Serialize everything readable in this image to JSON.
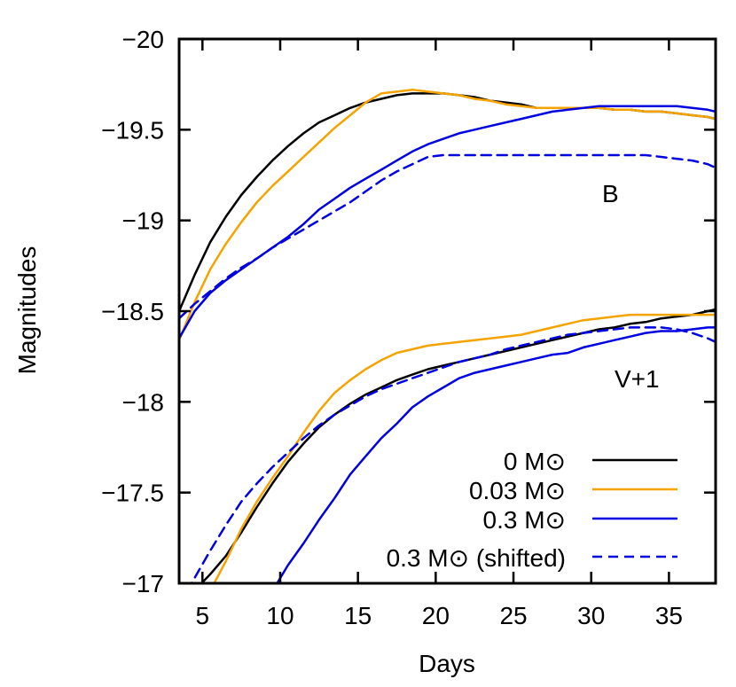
{
  "chart_data": {
    "type": "line",
    "xlabel": "Days",
    "ylabel": "Magnitudes",
    "xlim": [
      3.5,
      38
    ],
    "ylim": [
      -17,
      -20
    ],
    "y_axis_inverted": true,
    "grid": false,
    "legend_position": "bottom-right",
    "x_ticks": [
      5,
      10,
      15,
      20,
      25,
      30,
      35
    ],
    "y_ticks": [
      -20,
      -19.5,
      -19,
      -18.5,
      -18,
      -17.5,
      -17
    ],
    "x_tick_labels": [
      "5",
      "10",
      "15",
      "20",
      "25",
      "30",
      "35"
    ],
    "y_tick_labels": [
      "−20",
      "−19.5",
      "−19",
      "−18.5",
      "−18",
      "−17.5",
      "−17"
    ],
    "annotations": [
      {
        "text": "B",
        "x": 30.7,
        "y": -19.1
      },
      {
        "text": "V+1",
        "x": 31.5,
        "y": -18.08
      }
    ],
    "legend": [
      {
        "label": "0 M⊙",
        "color": "#000000",
        "dash": "solid"
      },
      {
        "label": "0.03 M⊙",
        "color": "#f5a300",
        "dash": "solid"
      },
      {
        "label": "0.3 M⊙",
        "color": "#0000e0",
        "dash": "solid"
      },
      {
        "label": "0.3 M⊙ (shifted)",
        "color": "#0000e0",
        "dash": "dashed"
      }
    ],
    "series": [
      {
        "band": "B",
        "style": 0,
        "x": [
          3.5,
          4.5,
          5.5,
          6.5,
          7.5,
          8.5,
          9.5,
          10.5,
          11.5,
          12.5,
          13.5,
          14.5,
          15.5,
          16.5,
          17.5,
          18.5,
          19.5,
          20.5,
          21.5,
          22.5,
          23.5,
          24.5,
          25.5,
          26.5,
          27.5,
          28.5,
          29.5,
          30.5,
          31.5,
          32.5,
          33.5,
          34.5,
          35.5,
          36.5,
          37.5,
          38
        ],
        "y": [
          -18.5,
          -18.7,
          -18.88,
          -19.02,
          -19.14,
          -19.24,
          -19.33,
          -19.41,
          -19.48,
          -19.54,
          -19.58,
          -19.62,
          -19.65,
          -19.67,
          -19.69,
          -19.7,
          -19.7,
          -19.7,
          -19.69,
          -19.68,
          -19.66,
          -19.65,
          -19.64,
          -19.62,
          -19.62,
          -19.62,
          -19.62,
          -19.62,
          -19.61,
          -19.61,
          -19.6,
          -19.6,
          -19.59,
          -19.58,
          -19.57,
          -19.56
        ]
      },
      {
        "band": "B",
        "style": 1,
        "x": [
          3.5,
          4.5,
          5.5,
          6.5,
          7.5,
          8.5,
          9.5,
          10.5,
          11.5,
          12.5,
          13.5,
          14.5,
          15.5,
          16.5,
          17.5,
          18.5,
          19.5,
          20.5,
          21.5,
          22.5,
          23.5,
          24.5,
          25.5,
          26.5,
          27.5,
          28.5,
          29.5,
          30.5,
          31.5,
          32.5,
          33.5,
          34.5,
          35.5,
          36.5,
          37.5,
          38
        ],
        "y": [
          -18.34,
          -18.55,
          -18.73,
          -18.87,
          -18.99,
          -19.1,
          -19.19,
          -19.27,
          -19.35,
          -19.43,
          -19.51,
          -19.58,
          -19.65,
          -19.7,
          -19.71,
          -19.72,
          -19.71,
          -19.7,
          -19.69,
          -19.67,
          -19.66,
          -19.64,
          -19.63,
          -19.62,
          -19.62,
          -19.62,
          -19.62,
          -19.62,
          -19.61,
          -19.61,
          -19.6,
          -19.6,
          -19.59,
          -19.58,
          -19.57,
          -19.56
        ]
      },
      {
        "band": "B",
        "style": 2,
        "x": [
          3.5,
          4.5,
          5.5,
          6.5,
          7.5,
          8.5,
          9.5,
          10.5,
          11.5,
          12.5,
          13.5,
          14.5,
          15.5,
          16.5,
          17.5,
          18.5,
          19.5,
          20.5,
          21.5,
          22.5,
          23.5,
          24.5,
          25.5,
          26.5,
          27.5,
          28.5,
          29.5,
          30.5,
          31.5,
          32.5,
          33.5,
          34.5,
          35.5,
          36.5,
          37.5,
          38
        ],
        "y": [
          -18.35,
          -18.5,
          -18.6,
          -18.67,
          -18.73,
          -18.79,
          -18.85,
          -18.91,
          -18.98,
          -19.06,
          -19.12,
          -19.18,
          -19.23,
          -19.28,
          -19.33,
          -19.38,
          -19.42,
          -19.45,
          -19.48,
          -19.5,
          -19.52,
          -19.54,
          -19.56,
          -19.58,
          -19.6,
          -19.61,
          -19.62,
          -19.63,
          -19.63,
          -19.63,
          -19.63,
          -19.63,
          -19.63,
          -19.62,
          -19.61,
          -19.6
        ]
      },
      {
        "band": "B",
        "style": 3,
        "x": [
          3.5,
          4.5,
          5.5,
          6.5,
          7.5,
          8.5,
          9.5,
          10.5,
          11.5,
          12.5,
          13.5,
          14.5,
          15.5,
          16.5,
          17.5,
          18.5,
          19.5,
          20.5,
          21.5,
          22.5,
          23.5,
          24.5,
          25.5,
          26.5,
          27.5,
          28.5,
          29.5,
          30.5,
          31.5,
          32.5,
          33.5,
          34.5,
          35.5,
          36.5,
          37.5,
          38
        ],
        "y": [
          -18.46,
          -18.54,
          -18.61,
          -18.68,
          -18.74,
          -18.79,
          -18.85,
          -18.9,
          -18.95,
          -19.0,
          -19.05,
          -19.1,
          -19.16,
          -19.22,
          -19.27,
          -19.31,
          -19.35,
          -19.36,
          -19.36,
          -19.36,
          -19.36,
          -19.36,
          -19.36,
          -19.36,
          -19.36,
          -19.36,
          -19.36,
          -19.36,
          -19.36,
          -19.36,
          -19.36,
          -19.35,
          -19.34,
          -19.33,
          -19.31,
          -19.29
        ]
      },
      {
        "band": "V+1",
        "style": 0,
        "x": [
          3.5,
          4.5,
          5.5,
          6.5,
          7.5,
          8.5,
          9.5,
          10.5,
          11.5,
          12.5,
          13.5,
          14.5,
          15.5,
          16.5,
          17.5,
          18.5,
          19.5,
          20.5,
          21.5,
          22.5,
          23.5,
          24.5,
          25.5,
          26.5,
          27.5,
          28.5,
          29.5,
          30.5,
          31.5,
          32.5,
          33.5,
          34.5,
          35.5,
          36.5,
          37.5,
          38
        ],
        "y": [
          -16.83,
          -16.96,
          -17.05,
          -17.15,
          -17.28,
          -17.42,
          -17.55,
          -17.67,
          -17.77,
          -17.86,
          -17.93,
          -17.99,
          -18.04,
          -18.08,
          -18.12,
          -18.15,
          -18.18,
          -18.2,
          -18.22,
          -18.24,
          -18.26,
          -18.28,
          -18.3,
          -18.32,
          -18.34,
          -18.36,
          -18.38,
          -18.4,
          -18.41,
          -18.43,
          -18.44,
          -18.46,
          -18.47,
          -18.48,
          -18.5,
          -18.51
        ]
      },
      {
        "band": "V+1",
        "style": 1,
        "x": [
          3.5,
          4.5,
          5.5,
          6.5,
          7.5,
          8.5,
          9.5,
          10.5,
          11.5,
          12.5,
          13.5,
          14.5,
          15.5,
          16.5,
          17.5,
          18.5,
          19.5,
          20.5,
          21.5,
          22.5,
          23.5,
          24.5,
          25.5,
          26.5,
          27.5,
          28.5,
          29.5,
          30.5,
          31.5,
          32.5,
          33.5,
          34.5,
          35.5,
          36.5,
          37.5,
          38
        ],
        "y": [
          -16.7,
          -16.83,
          -16.96,
          -17.12,
          -17.3,
          -17.45,
          -17.58,
          -17.7,
          -17.83,
          -17.95,
          -18.05,
          -18.12,
          -18.18,
          -18.23,
          -18.27,
          -18.29,
          -18.31,
          -18.32,
          -18.33,
          -18.34,
          -18.35,
          -18.36,
          -18.37,
          -18.39,
          -18.41,
          -18.43,
          -18.45,
          -18.46,
          -18.47,
          -18.48,
          -18.48,
          -18.48,
          -18.48,
          -18.48,
          -18.48,
          -18.48
        ]
      },
      {
        "band": "V+1",
        "style": 2,
        "x": [
          9.8,
          10.5,
          11.5,
          12.5,
          13.5,
          14.5,
          15.5,
          16.5,
          17.5,
          18.5,
          19.5,
          20.5,
          21.5,
          22.5,
          23.5,
          24.5,
          25.5,
          26.5,
          27.5,
          28.5,
          29.5,
          30.5,
          31.5,
          32.5,
          33.5,
          34.5,
          35.5,
          36.5,
          37.5,
          38
        ],
        "y": [
          -17.0,
          -17.1,
          -17.22,
          -17.35,
          -17.47,
          -17.6,
          -17.7,
          -17.8,
          -17.88,
          -17.97,
          -18.03,
          -18.08,
          -18.13,
          -18.16,
          -18.18,
          -18.2,
          -18.22,
          -18.24,
          -18.26,
          -18.27,
          -18.3,
          -18.32,
          -18.34,
          -18.36,
          -18.38,
          -18.39,
          -18.39,
          -18.4,
          -18.41,
          -18.41
        ]
      },
      {
        "band": "V+1",
        "style": 3,
        "x": [
          3.5,
          4.5,
          5.5,
          6.5,
          7.5,
          8.5,
          9.5,
          10.5,
          11.5,
          12.5,
          13.5,
          14.5,
          15.5,
          16.5,
          17.5,
          18.5,
          19.5,
          20.5,
          21.5,
          22.5,
          23.5,
          24.5,
          25.5,
          26.5,
          27.5,
          28.5,
          29.5,
          30.5,
          31.5,
          32.5,
          33.5,
          34.5,
          35.5,
          36.5,
          37.5,
          38
        ],
        "y": [
          -16.88,
          -17.03,
          -17.18,
          -17.32,
          -17.45,
          -17.55,
          -17.64,
          -17.72,
          -17.8,
          -17.87,
          -17.93,
          -17.98,
          -18.03,
          -18.07,
          -18.1,
          -18.13,
          -18.16,
          -18.19,
          -18.22,
          -18.24,
          -18.26,
          -18.29,
          -18.31,
          -18.33,
          -18.35,
          -18.37,
          -18.38,
          -18.39,
          -18.4,
          -18.41,
          -18.41,
          -18.41,
          -18.4,
          -18.38,
          -18.35,
          -18.33
        ]
      }
    ]
  }
}
